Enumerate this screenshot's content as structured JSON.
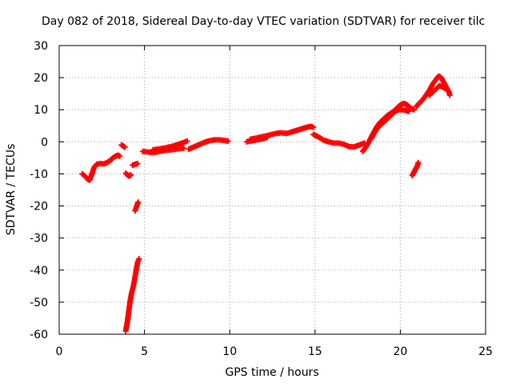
{
  "chart_data": {
    "type": "scatter",
    "title": "Day 082 of 2018, Sidereal Day-to-day VTEC variation (SDTVAR) for receiver tilc",
    "xlabel": "GPS time / hours",
    "ylabel": "SDTVAR / TECUs",
    "xlim": [
      0,
      25
    ],
    "ylim": [
      -60,
      30
    ],
    "xticks": [
      0,
      5,
      10,
      15,
      20,
      25
    ],
    "yticks": [
      -60,
      -50,
      -40,
      -30,
      -20,
      -10,
      0,
      10,
      20,
      30
    ],
    "grid": true,
    "marker": "plus",
    "color": "#ff0000",
    "segments": [
      {
        "points": [
          [
            1.35,
            -10.0
          ],
          [
            1.5,
            -10.6
          ],
          [
            1.6,
            -11.2
          ],
          [
            1.7,
            -11.8
          ],
          [
            1.78,
            -12.0
          ],
          [
            1.85,
            -11.0
          ],
          [
            1.95,
            -9.5
          ],
          [
            2.05,
            -8.0
          ],
          [
            2.2,
            -7.0
          ],
          [
            2.4,
            -6.8
          ],
          [
            2.6,
            -6.9
          ],
          [
            2.8,
            -6.5
          ],
          [
            3.0,
            -5.8
          ],
          [
            3.15,
            -5.0
          ],
          [
            3.3,
            -4.5
          ],
          [
            3.45,
            -4.2
          ],
          [
            3.55,
            -4.5
          ]
        ]
      },
      {
        "points": [
          [
            3.65,
            -1.0
          ],
          [
            3.75,
            -1.3
          ],
          [
            3.85,
            -1.7
          ]
        ]
      },
      {
        "points": [
          [
            3.9,
            -9.8
          ],
          [
            4.0,
            -10.3
          ],
          [
            4.1,
            -10.7
          ],
          [
            4.2,
            -10.3
          ]
        ]
      },
      {
        "points": [
          [
            4.3,
            -7.3
          ],
          [
            4.45,
            -7.0
          ],
          [
            4.6,
            -6.8
          ]
        ]
      },
      {
        "points": [
          [
            4.45,
            -21.5
          ],
          [
            4.52,
            -20.5
          ],
          [
            4.58,
            -19.5
          ],
          [
            4.63,
            -18.8
          ]
        ]
      },
      {
        "points": [
          [
            3.9,
            -59.0
          ],
          [
            3.95,
            -57.5
          ],
          [
            4.0,
            -56.0
          ],
          [
            4.05,
            -54.0
          ],
          [
            4.1,
            -52.0
          ],
          [
            4.15,
            -50.0
          ],
          [
            4.2,
            -48.5
          ],
          [
            4.25,
            -47.0
          ],
          [
            4.3,
            -46.0
          ],
          [
            4.35,
            -45.0
          ],
          [
            4.4,
            -43.5
          ],
          [
            4.45,
            -42.0
          ],
          [
            4.5,
            -40.5
          ],
          [
            4.55,
            -39.0
          ],
          [
            4.6,
            -37.5
          ],
          [
            4.68,
            -36.5
          ]
        ]
      },
      {
        "points": [
          [
            4.9,
            -3.0
          ],
          [
            5.2,
            -3.2
          ],
          [
            5.5,
            -3.4
          ],
          [
            5.8,
            -3.1
          ],
          [
            6.1,
            -2.8
          ],
          [
            6.4,
            -2.6
          ],
          [
            6.7,
            -2.4
          ],
          [
            7.0,
            -2.2
          ],
          [
            7.3,
            -2.0
          ]
        ]
      },
      {
        "points": [
          [
            5.5,
            -2.5
          ],
          [
            5.9,
            -2.2
          ],
          [
            6.3,
            -1.8
          ],
          [
            6.7,
            -1.3
          ],
          [
            7.1,
            -0.6
          ],
          [
            7.5,
            0.2
          ]
        ]
      },
      {
        "points": [
          [
            7.6,
            -2.3
          ],
          [
            7.9,
            -1.6
          ],
          [
            8.2,
            -0.9
          ],
          [
            8.5,
            -0.2
          ],
          [
            8.8,
            0.3
          ],
          [
            9.1,
            0.6
          ],
          [
            9.4,
            0.6
          ],
          [
            9.7,
            0.4
          ],
          [
            9.9,
            0.2
          ]
        ]
      },
      {
        "points": [
          [
            11.0,
            0.0
          ],
          [
            11.3,
            0.3
          ],
          [
            11.6,
            0.6
          ],
          [
            11.9,
            0.9
          ],
          [
            12.2,
            1.4
          ]
        ]
      },
      {
        "points": [
          [
            11.2,
            0.8
          ],
          [
            11.5,
            1.1
          ],
          [
            11.8,
            1.5
          ],
          [
            12.1,
            1.8
          ],
          [
            12.4,
            2.2
          ],
          [
            12.7,
            2.6
          ],
          [
            13.0,
            2.8
          ],
          [
            13.3,
            2.6
          ],
          [
            13.6,
            3.0
          ],
          [
            13.9,
            3.5
          ],
          [
            14.2,
            4.0
          ],
          [
            14.5,
            4.5
          ],
          [
            14.75,
            4.8
          ],
          [
            14.9,
            4.5
          ]
        ]
      },
      {
        "points": [
          [
            14.9,
            2.3
          ],
          [
            15.1,
            1.8
          ],
          [
            15.3,
            1.2
          ],
          [
            15.5,
            0.5
          ],
          [
            15.8,
            0.0
          ],
          [
            16.1,
            -0.4
          ],
          [
            16.4,
            -0.4
          ],
          [
            16.7,
            -0.8
          ],
          [
            17.0,
            -1.5
          ],
          [
            17.3,
            -1.6
          ],
          [
            17.6,
            -1.0
          ],
          [
            17.9,
            -0.4
          ]
        ]
      },
      {
        "points": [
          [
            17.8,
            -3.0
          ],
          [
            18.0,
            -1.5
          ],
          [
            18.2,
            0.5
          ],
          [
            18.4,
            2.5
          ],
          [
            18.6,
            4.5
          ],
          [
            18.8,
            6.0
          ],
          [
            19.0,
            7.0
          ],
          [
            19.2,
            8.0
          ],
          [
            19.4,
            8.8
          ],
          [
            19.6,
            9.5
          ],
          [
            19.8,
            10.5
          ],
          [
            20.0,
            11.5
          ],
          [
            20.2,
            12.0
          ],
          [
            20.4,
            11.5
          ],
          [
            20.6,
            10.5
          ],
          [
            20.8,
            10.0
          ]
        ]
      },
      {
        "points": [
          [
            18.3,
            1.0
          ],
          [
            18.5,
            3.0
          ],
          [
            18.7,
            4.5
          ],
          [
            18.9,
            5.5
          ],
          [
            19.1,
            6.5
          ],
          [
            19.3,
            7.5
          ],
          [
            19.5,
            8.5
          ],
          [
            19.7,
            9.5
          ],
          [
            19.9,
            10.0
          ],
          [
            20.1,
            10.0
          ],
          [
            20.3,
            9.8
          ],
          [
            20.5,
            9.5
          ]
        ]
      },
      {
        "points": [
          [
            20.95,
            11.0
          ],
          [
            21.1,
            12.0
          ],
          [
            21.3,
            13.0
          ],
          [
            21.5,
            14.5
          ],
          [
            21.7,
            16.0
          ],
          [
            21.9,
            18.0
          ],
          [
            22.1,
            19.5
          ],
          [
            22.25,
            20.5
          ],
          [
            22.4,
            20.0
          ],
          [
            22.55,
            18.5
          ],
          [
            22.7,
            17.0
          ],
          [
            22.85,
            15.5
          ],
          [
            22.9,
            14.5
          ]
        ]
      },
      {
        "points": [
          [
            21.7,
            14.5
          ],
          [
            21.9,
            15.5
          ],
          [
            22.1,
            16.5
          ],
          [
            22.3,
            17.5
          ],
          [
            22.5,
            17.0
          ],
          [
            22.7,
            16.5
          ],
          [
            22.85,
            15.5
          ]
        ]
      },
      {
        "points": [
          [
            20.7,
            -10.5
          ],
          [
            20.8,
            -9.5
          ],
          [
            20.9,
            -8.5
          ],
          [
            21.0,
            -7.5
          ],
          [
            21.05,
            -6.5
          ]
        ]
      }
    ]
  }
}
